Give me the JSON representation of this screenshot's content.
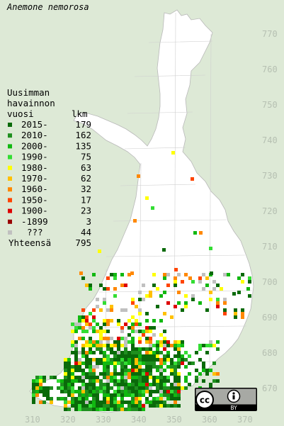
{
  "map": {
    "title": "Anemone nemorosa",
    "legend": {
      "head_lines": [
        "Uusimman",
        "havainnon",
        "vuosi"
      ],
      "count_head": "lkm",
      "rows": [
        {
          "label": "2015-",
          "count": "179",
          "color": "#0a6a0a"
        },
        {
          "label": "2010-",
          "count": "162",
          "color": "#1f8f1f"
        },
        {
          "label": "2000-",
          "count": "135",
          "color": "#11b811"
        },
        {
          "label": "1990-",
          "count": "75",
          "color": "#33dd33"
        },
        {
          "label": "1980-",
          "count": "63",
          "color": "#ffff00"
        },
        {
          "label": "1970-",
          "count": "62",
          "color": "#ffc000"
        },
        {
          "label": "1960-",
          "count": "32",
          "color": "#ff8800"
        },
        {
          "label": "1950-",
          "count": "17",
          "color": "#ff4400"
        },
        {
          "label": "1900-",
          "count": "23",
          "color": "#dd0000"
        },
        {
          "label": "-1899",
          "count": "3",
          "color": "#990000"
        },
        {
          "label": "???",
          "count": "44",
          "color": "#c0c0c0"
        }
      ],
      "total_label": "Yhteensä",
      "total_count": "795"
    },
    "y_ticks": [
      "770",
      "760",
      "750",
      "740",
      "730",
      "720",
      "710",
      "700",
      "690",
      "680",
      "670"
    ],
    "x_ticks": [
      "310",
      "320",
      "330",
      "340",
      "350",
      "360",
      "370"
    ],
    "license_badge": {
      "cc": "cc",
      "by": "BY"
    }
  }
}
